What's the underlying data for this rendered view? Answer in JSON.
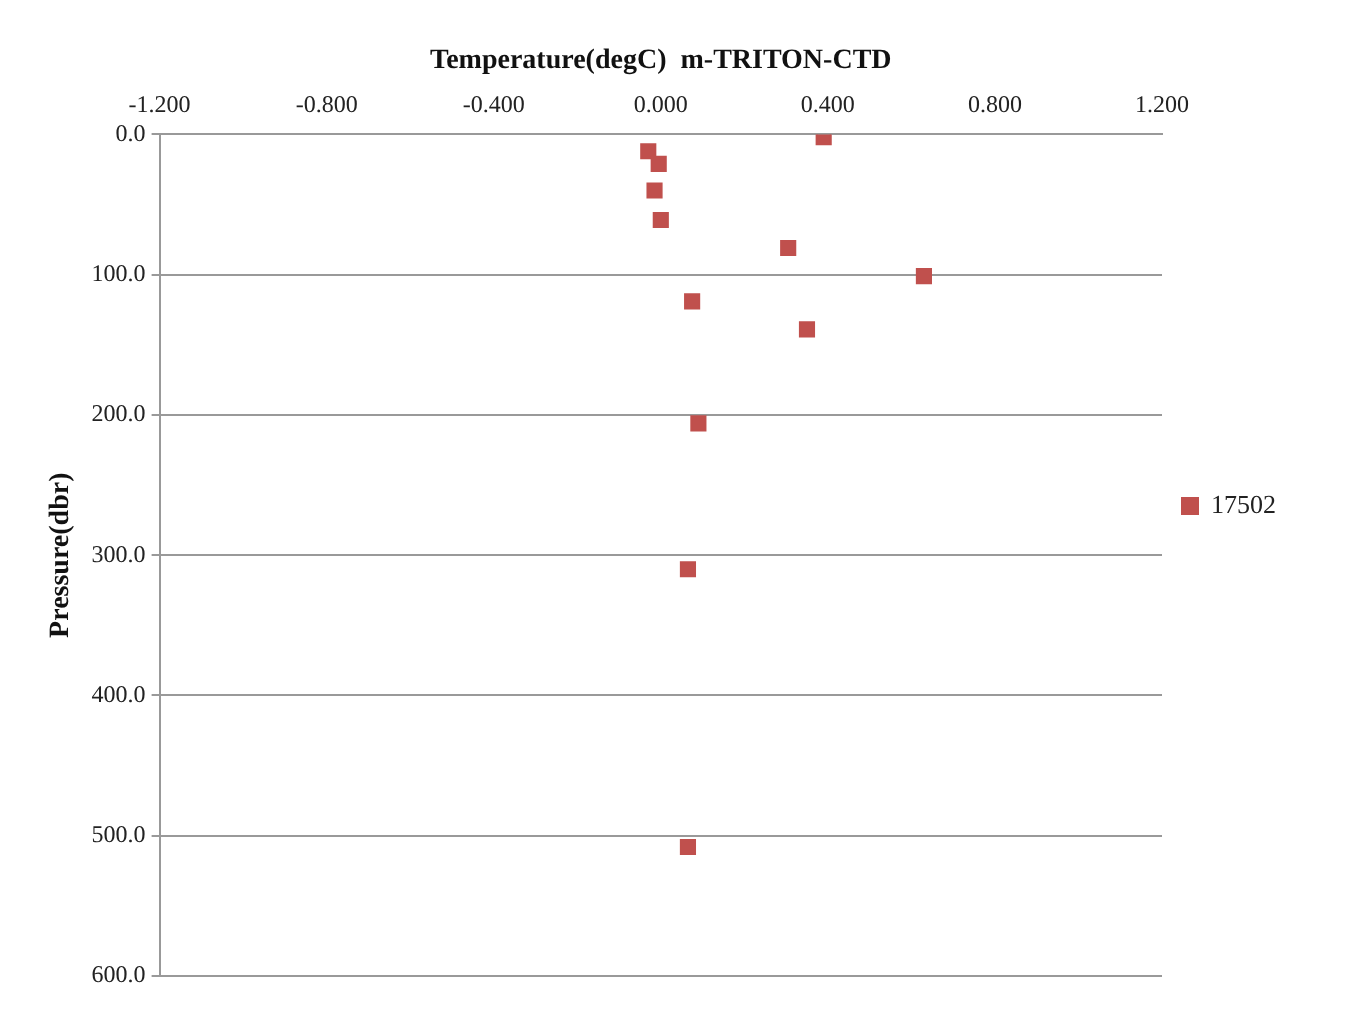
{
  "chart_data": {
    "type": "scatter",
    "xlabel": "Temperature(degC)  m-TRITON-CTD",
    "ylabel": "Pressure(dbr)",
    "xlim": [
      -1.2,
      1.2
    ],
    "xticks": [
      {
        "value": -1.2,
        "label": "-1.200"
      },
      {
        "value": -0.8,
        "label": "-0.800"
      },
      {
        "value": -0.4,
        "label": "-0.400"
      },
      {
        "value": 0,
        "label": "0.000"
      },
      {
        "value": 0.4,
        "label": "0.400"
      },
      {
        "value": 0.8,
        "label": "0.800"
      },
      {
        "value": 1.2,
        "label": "1.200"
      }
    ],
    "ylim": [
      600,
      0
    ],
    "yticks": [
      {
        "value": 0,
        "label": "0.0"
      },
      {
        "value": 100,
        "label": "100.0"
      },
      {
        "value": 200,
        "label": "200.0"
      },
      {
        "value": 300,
        "label": "300.0"
      },
      {
        "value": 400,
        "label": "400.0"
      },
      {
        "value": 500,
        "label": "500.0"
      },
      {
        "value": 600,
        "label": "600.0"
      }
    ],
    "series": [
      {
        "name": "17502",
        "color": "#c0504d",
        "x": [
          0.39,
          -0.03,
          -0.005,
          -0.015,
          0.0,
          0.305,
          0.63,
          0.075,
          0.35,
          0.09,
          0.065,
          0.065
        ],
        "values": [
          2,
          12,
          21,
          40,
          61,
          81,
          101,
          119,
          139,
          206,
          310,
          508
        ]
      }
    ],
    "grid": "y",
    "legend": "right",
    "marker": "square"
  }
}
